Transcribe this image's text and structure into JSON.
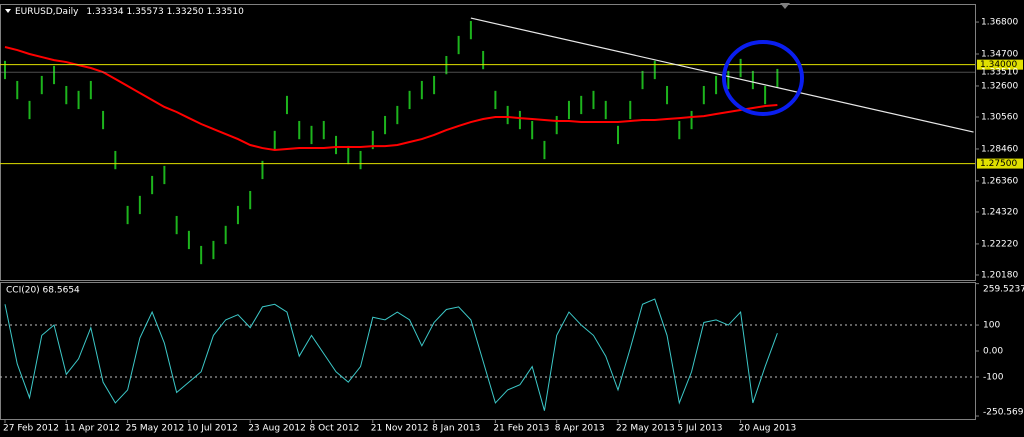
{
  "chart_data": [
    {
      "type": "ohlc",
      "title": "EURUSD,Daily",
      "subtitle": "1.33334 1.35573 1.33250 1.33510",
      "ylim": [
        1.1985,
        1.3792
      ],
      "yticks": [
        {
          "value": 1.368,
          "label": "1.36800"
        },
        {
          "value": 1.347,
          "label": "1.34700"
        },
        {
          "value": 1.326,
          "label": "1.32600"
        },
        {
          "value": 1.3056,
          "label": "1.30560"
        },
        {
          "value": 1.2846,
          "label": "1.28460"
        },
        {
          "value": 1.2636,
          "label": "1.26360"
        },
        {
          "value": 1.2432,
          "label": "1.24320"
        },
        {
          "value": 1.2222,
          "label": "1.22220"
        },
        {
          "value": 1.2018,
          "label": "1.20180"
        }
      ],
      "bars": {
        "color": "#1db41d",
        "high": [
          1.3425,
          1.3293,
          1.3162,
          1.3326,
          1.3392,
          1.326,
          1.3228,
          1.3293,
          1.3096,
          1.2833,
          1.2472,
          1.2538,
          1.2669,
          1.2735,
          1.2406,
          1.2308,
          1.2209,
          1.2242,
          1.2341,
          1.2472,
          1.257,
          1.2768,
          1.2965,
          1.3195,
          1.303,
          1.2998,
          1.303,
          1.2932,
          1.2866,
          1.2833,
          1.2965,
          1.3063,
          1.3129,
          1.3228,
          1.3293,
          1.3326,
          1.3457,
          1.3589,
          1.3687,
          1.349,
          1.3228,
          1.3129,
          1.3096,
          1.303,
          1.2899,
          1.3063,
          1.3162,
          1.3195,
          1.3228,
          1.3162,
          1.2998,
          1.3162,
          1.3359,
          1.3425,
          1.326,
          1.303,
          1.3096,
          1.326,
          1.3326,
          1.3359,
          1.3438,
          1.3359,
          1.326,
          1.3372
        ],
        "low": [
          1.3305,
          1.3173,
          1.3042,
          1.3206,
          1.3272,
          1.314,
          1.3108,
          1.3173,
          1.2976,
          1.2713,
          1.2352,
          1.2418,
          1.2549,
          1.2615,
          1.2286,
          1.2188,
          1.2089,
          1.2122,
          1.2221,
          1.2352,
          1.245,
          1.2648,
          1.2845,
          1.3075,
          1.291,
          1.2878,
          1.291,
          1.2812,
          1.2746,
          1.2713,
          1.2845,
          1.2943,
          1.3009,
          1.3108,
          1.3173,
          1.3206,
          1.3337,
          1.3469,
          1.3567,
          1.337,
          1.3108,
          1.3009,
          1.2976,
          1.291,
          1.2779,
          1.2943,
          1.3042,
          1.3075,
          1.3108,
          1.3042,
          1.2878,
          1.3042,
          1.3239,
          1.3305,
          1.314,
          1.291,
          1.2976,
          1.314,
          1.3206,
          1.3239,
          1.3318,
          1.3239,
          1.314,
          1.3252
        ]
      },
      "ma": {
        "color": "#ff0000",
        "values": [
          1.3516,
          1.3496,
          1.347,
          1.345,
          1.343,
          1.3417,
          1.3397,
          1.3378,
          1.3351,
          1.3306,
          1.326,
          1.3214,
          1.3168,
          1.3122,
          1.3089,
          1.3049,
          1.301,
          1.2977,
          1.2944,
          1.2911,
          1.2872,
          1.2852,
          1.2839,
          1.2846,
          1.2852,
          1.2852,
          1.2852,
          1.2859,
          1.2859,
          1.2859,
          1.2865,
          1.2865,
          1.2872,
          1.2892,
          1.2911,
          1.2938,
          1.297,
          1.2997,
          1.3023,
          1.3043,
          1.3056,
          1.3056,
          1.3049,
          1.3043,
          1.3036,
          1.303,
          1.303,
          1.3023,
          1.3023,
          1.3023,
          1.3023,
          1.303,
          1.3036,
          1.3036,
          1.3043,
          1.3049,
          1.3056,
          1.3062,
          1.3076,
          1.3089,
          1.3102,
          1.3115,
          1.3128,
          1.3135
        ]
      },
      "levels": [
        {
          "value": 1.34,
          "label": "1.34000",
          "color": "#e0e000"
        },
        {
          "value": 1.275,
          "label": "1.27500",
          "color": "#e0e000"
        }
      ],
      "last": {
        "value": 1.3351,
        "label": "1.33510",
        "color": "#9a9a9a"
      },
      "trendline": {
        "color": "#e8e8e8",
        "start": [
          38,
          1.3706
        ],
        "end": [
          79,
          1.2957
        ]
      }
    },
    {
      "type": "line",
      "title": "CCI(20) 68.5654",
      "ylim": [
        -262,
        262
      ],
      "yticks": [
        259.5237,
        100,
        {
          "value": 0,
          "label": "0.00"
        },
        -100,
        -250.569
      ],
      "dotted_levels": [
        100,
        -100
      ],
      "categories": [
        "27 Feb 2012",
        null,
        null,
        null,
        null,
        "11 Apr 2012",
        null,
        null,
        null,
        null,
        "25 May 2012",
        null,
        null,
        null,
        null,
        "10 Jul 2012",
        null,
        null,
        null,
        null,
        "23 Aug 2012",
        null,
        null,
        null,
        null,
        "8 Oct 2012",
        null,
        null,
        null,
        null,
        "21 Nov 2012",
        null,
        null,
        null,
        null,
        "8 Jan 2013",
        null,
        null,
        null,
        null,
        "21 Feb 2013",
        null,
        null,
        null,
        null,
        "8 Apr 2013",
        null,
        null,
        null,
        null,
        "22 May 2013",
        null,
        null,
        null,
        null,
        "5 Jul 2013",
        null,
        null,
        null,
        null,
        "20 Aug 2013",
        null,
        null,
        null
      ],
      "series": [
        {
          "color": "#3cc8c8",
          "values": [
            180,
            -50,
            -180,
            60,
            100,
            -90,
            -30,
            90,
            -120,
            -200,
            -150,
            50,
            150,
            30,
            -160,
            -120,
            -80,
            60,
            120,
            140,
            90,
            170,
            180,
            150,
            -20,
            60,
            -10,
            -80,
            -120,
            -60,
            130,
            120,
            150,
            120,
            20,
            110,
            160,
            170,
            120,
            -40,
            -200,
            -150,
            -130,
            -60,
            -230,
            60,
            150,
            100,
            60,
            -20,
            -150,
            10,
            180,
            200,
            60,
            -200,
            -80,
            110,
            120,
            100,
            150,
            -200,
            -60,
            68.5654
          ]
        }
      ]
    }
  ]
}
